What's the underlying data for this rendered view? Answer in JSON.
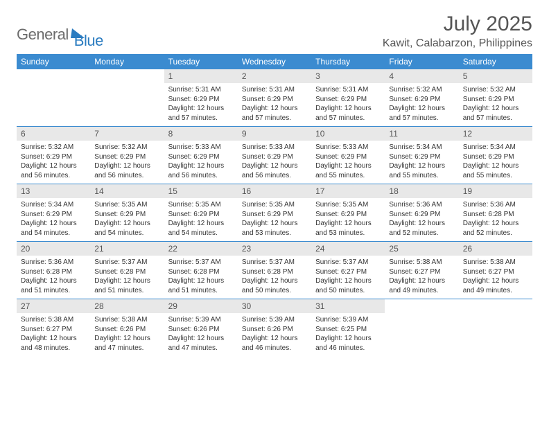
{
  "logo": {
    "part1": "General",
    "part2": "Blue"
  },
  "title": "July 2025",
  "location": "Kawit, Calabarzon, Philippines",
  "colors": {
    "header_bg": "#3b8bd0",
    "daynum_bg": "#e8e8e8",
    "week_border": "#3b8bd0",
    "text": "#333333",
    "title_text": "#555555"
  },
  "weekdays": [
    "Sunday",
    "Monday",
    "Tuesday",
    "Wednesday",
    "Thursday",
    "Friday",
    "Saturday"
  ],
  "weeks": [
    [
      null,
      null,
      {
        "n": "1",
        "sunrise": "5:31 AM",
        "sunset": "6:29 PM",
        "daylight": "12 hours and 57 minutes."
      },
      {
        "n": "2",
        "sunrise": "5:31 AM",
        "sunset": "6:29 PM",
        "daylight": "12 hours and 57 minutes."
      },
      {
        "n": "3",
        "sunrise": "5:31 AM",
        "sunset": "6:29 PM",
        "daylight": "12 hours and 57 minutes."
      },
      {
        "n": "4",
        "sunrise": "5:32 AM",
        "sunset": "6:29 PM",
        "daylight": "12 hours and 57 minutes."
      },
      {
        "n": "5",
        "sunrise": "5:32 AM",
        "sunset": "6:29 PM",
        "daylight": "12 hours and 57 minutes."
      }
    ],
    [
      {
        "n": "6",
        "sunrise": "5:32 AM",
        "sunset": "6:29 PM",
        "daylight": "12 hours and 56 minutes."
      },
      {
        "n": "7",
        "sunrise": "5:32 AM",
        "sunset": "6:29 PM",
        "daylight": "12 hours and 56 minutes."
      },
      {
        "n": "8",
        "sunrise": "5:33 AM",
        "sunset": "6:29 PM",
        "daylight": "12 hours and 56 minutes."
      },
      {
        "n": "9",
        "sunrise": "5:33 AM",
        "sunset": "6:29 PM",
        "daylight": "12 hours and 56 minutes."
      },
      {
        "n": "10",
        "sunrise": "5:33 AM",
        "sunset": "6:29 PM",
        "daylight": "12 hours and 55 minutes."
      },
      {
        "n": "11",
        "sunrise": "5:34 AM",
        "sunset": "6:29 PM",
        "daylight": "12 hours and 55 minutes."
      },
      {
        "n": "12",
        "sunrise": "5:34 AM",
        "sunset": "6:29 PM",
        "daylight": "12 hours and 55 minutes."
      }
    ],
    [
      {
        "n": "13",
        "sunrise": "5:34 AM",
        "sunset": "6:29 PM",
        "daylight": "12 hours and 54 minutes."
      },
      {
        "n": "14",
        "sunrise": "5:35 AM",
        "sunset": "6:29 PM",
        "daylight": "12 hours and 54 minutes."
      },
      {
        "n": "15",
        "sunrise": "5:35 AM",
        "sunset": "6:29 PM",
        "daylight": "12 hours and 54 minutes."
      },
      {
        "n": "16",
        "sunrise": "5:35 AM",
        "sunset": "6:29 PM",
        "daylight": "12 hours and 53 minutes."
      },
      {
        "n": "17",
        "sunrise": "5:35 AM",
        "sunset": "6:29 PM",
        "daylight": "12 hours and 53 minutes."
      },
      {
        "n": "18",
        "sunrise": "5:36 AM",
        "sunset": "6:29 PM",
        "daylight": "12 hours and 52 minutes."
      },
      {
        "n": "19",
        "sunrise": "5:36 AM",
        "sunset": "6:28 PM",
        "daylight": "12 hours and 52 minutes."
      }
    ],
    [
      {
        "n": "20",
        "sunrise": "5:36 AM",
        "sunset": "6:28 PM",
        "daylight": "12 hours and 51 minutes."
      },
      {
        "n": "21",
        "sunrise": "5:37 AM",
        "sunset": "6:28 PM",
        "daylight": "12 hours and 51 minutes."
      },
      {
        "n": "22",
        "sunrise": "5:37 AM",
        "sunset": "6:28 PM",
        "daylight": "12 hours and 51 minutes."
      },
      {
        "n": "23",
        "sunrise": "5:37 AM",
        "sunset": "6:28 PM",
        "daylight": "12 hours and 50 minutes."
      },
      {
        "n": "24",
        "sunrise": "5:37 AM",
        "sunset": "6:27 PM",
        "daylight": "12 hours and 50 minutes."
      },
      {
        "n": "25",
        "sunrise": "5:38 AM",
        "sunset": "6:27 PM",
        "daylight": "12 hours and 49 minutes."
      },
      {
        "n": "26",
        "sunrise": "5:38 AM",
        "sunset": "6:27 PM",
        "daylight": "12 hours and 49 minutes."
      }
    ],
    [
      {
        "n": "27",
        "sunrise": "5:38 AM",
        "sunset": "6:27 PM",
        "daylight": "12 hours and 48 minutes."
      },
      {
        "n": "28",
        "sunrise": "5:38 AM",
        "sunset": "6:26 PM",
        "daylight": "12 hours and 47 minutes."
      },
      {
        "n": "29",
        "sunrise": "5:39 AM",
        "sunset": "6:26 PM",
        "daylight": "12 hours and 47 minutes."
      },
      {
        "n": "30",
        "sunrise": "5:39 AM",
        "sunset": "6:26 PM",
        "daylight": "12 hours and 46 minutes."
      },
      {
        "n": "31",
        "sunrise": "5:39 AM",
        "sunset": "6:25 PM",
        "daylight": "12 hours and 46 minutes."
      },
      null,
      null
    ]
  ],
  "labels": {
    "sunrise": "Sunrise:",
    "sunset": "Sunset:",
    "daylight": "Daylight:"
  }
}
